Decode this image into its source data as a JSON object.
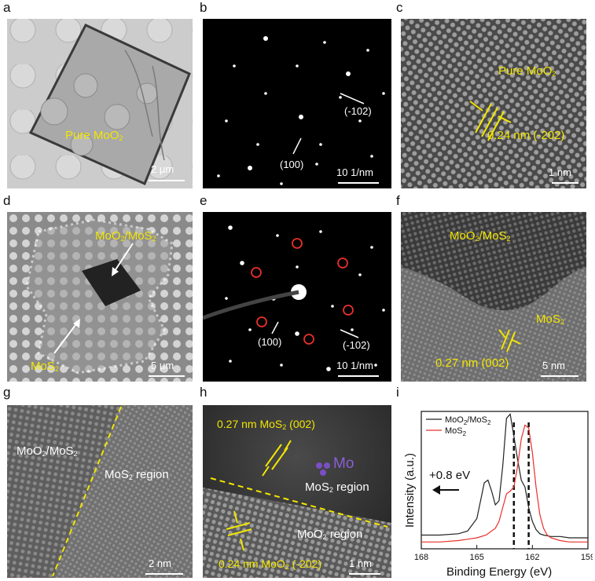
{
  "panels": {
    "a": {
      "letter": "a",
      "label_main": "Pure MoO",
      "label_sub": "2",
      "scale": "2 μm"
    },
    "b": {
      "letter": "b",
      "ann1": "(-102)",
      "ann2": "(100)",
      "scale": "10 1/nm"
    },
    "c": {
      "letter": "c",
      "label_main": "Pure MoO",
      "label_sub": "2",
      "spacing": "0.24 nm (-202)",
      "scale": "1 nm"
    },
    "d": {
      "letter": "d",
      "label1_a": "MoO",
      "label1_b": "2",
      "label1_c": "/MoS",
      "label1_d": "2",
      "label2_a": "MoS",
      "label2_b": "2",
      "scale": "5 μm"
    },
    "e": {
      "letter": "e",
      "ann1": "(100)",
      "ann2": "(-102)",
      "scale": "10 1/nm"
    },
    "f": {
      "letter": "f",
      "label1_a": "MoO",
      "label1_b": "2",
      "label1_c": "/MoS",
      "label1_d": "2",
      "label2_a": "MoS",
      "label2_b": "2",
      "spacing": "0.27 nm (002)",
      "scale": "5 nm"
    },
    "g": {
      "letter": "g",
      "label1_a": "MoO",
      "label1_b": "2",
      "label1_c": "/MoS",
      "label1_d": "2",
      "label2_a": "MoS",
      "label2_b": "2",
      "label2_c": " region",
      "scale": "2 nm"
    },
    "h": {
      "letter": "h",
      "top_a": "0.27 nm MoS",
      "top_b": "2",
      "top_c": " (002)",
      "mo": "Mo",
      "region1_a": "MoS",
      "region1_b": "2",
      "region1_c": " region",
      "region2_a": "MoO",
      "region2_b": "2",
      "region2_c": " region",
      "bottom_a": "0.24 nm MoO",
      "bottom_b": "2",
      "bottom_c": " (-202)",
      "scale": "1 nm"
    },
    "i": {
      "letter": "i",
      "shift": "+0.8 eV"
    }
  },
  "colors": {
    "annotation": "#f2e600",
    "series1": "#222222",
    "series2": "#e8302a",
    "mo_atoms": "#7a4fc4"
  },
  "chart_data": {
    "type": "line",
    "xlabel": "Binding Energy (eV)",
    "ylabel": "Intensity (a.u.)",
    "xlim": [
      168,
      159
    ],
    "x_ticks": [
      "168",
      "165",
      "162",
      "159"
    ],
    "x_tick_values": [
      168,
      165,
      162,
      159
    ],
    "legend_position": "top-left",
    "series": [
      {
        "name_a": "MoO",
        "name_b": "2",
        "name_c": "/MoS",
        "name_d": "2",
        "x": [
          168,
          167,
          166,
          165.5,
          165,
          164.8,
          164.6,
          164.4,
          164.2,
          164.0,
          163.8,
          163.6,
          163.4,
          163.2,
          163.0,
          162.8,
          162.6,
          162.4,
          162.2,
          162.0,
          161.8,
          161.6,
          161.4,
          161.0,
          160.5,
          160,
          159.5,
          159
        ],
        "y": [
          0.1,
          0.1,
          0.11,
          0.13,
          0.22,
          0.35,
          0.48,
          0.5,
          0.42,
          0.32,
          0.35,
          0.6,
          0.95,
          0.98,
          0.82,
          0.65,
          0.5,
          0.45,
          0.3,
          0.2,
          0.14,
          0.11,
          0.1,
          0.09,
          0.09,
          0.08,
          0.08,
          0.08
        ]
      },
      {
        "name_a": "MoS",
        "name_b": "2",
        "x": [
          168,
          167,
          166,
          165.5,
          165,
          164.5,
          164.0,
          163.8,
          163.6,
          163.4,
          163.2,
          163.0,
          162.8,
          162.6,
          162.4,
          162.2,
          162.0,
          161.8,
          161.6,
          161.4,
          161.2,
          161.0,
          160.5,
          160,
          159.5,
          159
        ],
        "y": [
          0.05,
          0.05,
          0.06,
          0.07,
          0.08,
          0.1,
          0.15,
          0.2,
          0.3,
          0.4,
          0.42,
          0.45,
          0.6,
          0.8,
          0.9,
          0.88,
          0.7,
          0.45,
          0.25,
          0.15,
          0.1,
          0.08,
          0.06,
          0.05,
          0.05,
          0.05
        ]
      }
    ],
    "dashed_lines": [
      163.0,
      162.2
    ]
  }
}
